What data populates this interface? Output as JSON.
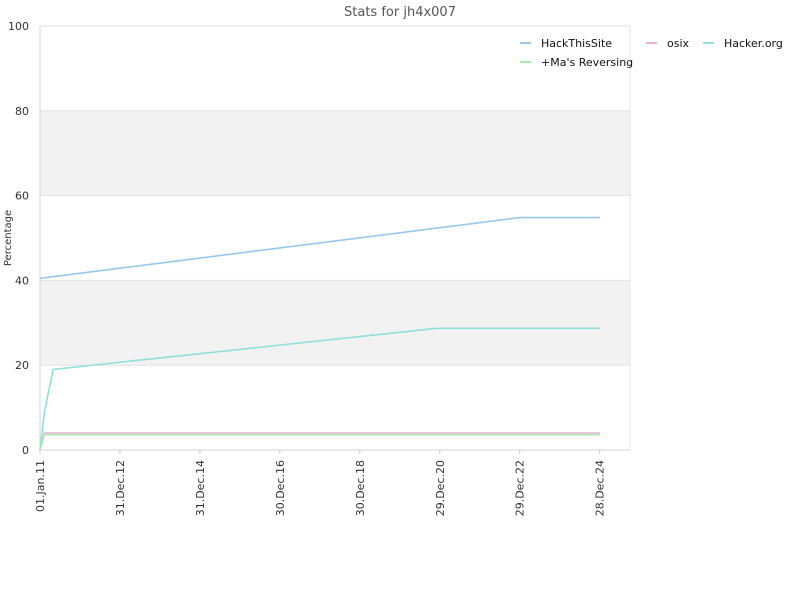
{
  "chart_data": {
    "type": "line",
    "title": "Stats for jh4x007",
    "ylabel": "Percentage",
    "xlabel": "",
    "ylim": [
      0,
      100
    ],
    "y_ticks": [
      0,
      20,
      40,
      60,
      80,
      100
    ],
    "x_range": [
      "2011-01-01",
      "2025-10-01"
    ],
    "x_ticks": [
      {
        "date": "2011-01-01",
        "label": "01.Jan.11"
      },
      {
        "date": "2012-12-31",
        "label": "31.Dec.12"
      },
      {
        "date": "2014-12-31",
        "label": "31.Dec.14"
      },
      {
        "date": "2016-12-30",
        "label": "30.Dec.16"
      },
      {
        "date": "2018-12-30",
        "label": "30.Dec.18"
      },
      {
        "date": "2020-12-29",
        "label": "29.Dec.20"
      },
      {
        "date": "2022-12-29",
        "label": "29.Dec.22"
      },
      {
        "date": "2024-12-28",
        "label": "28.Dec.24"
      }
    ],
    "grid": true,
    "bands": [
      [
        20,
        40
      ],
      [
        60,
        80
      ]
    ],
    "legend_position": "top-right",
    "series": [
      {
        "name": "HackThisSite",
        "color": "#99c9ea",
        "points": [
          [
            "2011-01-01",
            40.5
          ],
          [
            "2022-12-29",
            54.8
          ],
          [
            "2025-01-01",
            54.8
          ]
        ]
      },
      {
        "name": "osix",
        "color": "#eab0d4",
        "points": [
          [
            "2011-01-01",
            0
          ],
          [
            "2011-02-10",
            4.0
          ],
          [
            "2025-01-01",
            4.0
          ]
        ]
      },
      {
        "name": "Hacker.org",
        "color": "#90e0dc",
        "points": [
          [
            "2011-01-01",
            0
          ],
          [
            "2011-02-10",
            9.0
          ],
          [
            "2011-05-01",
            19.0
          ],
          [
            "2020-12-01",
            28.7
          ],
          [
            "2025-01-01",
            28.7
          ]
        ]
      },
      {
        "name": "+Ma's Reversing",
        "color": "#a8eca8",
        "points": [
          [
            "2011-01-01",
            0
          ],
          [
            "2011-02-10",
            3.6
          ],
          [
            "2025-01-01",
            3.6
          ]
        ]
      }
    ]
  }
}
